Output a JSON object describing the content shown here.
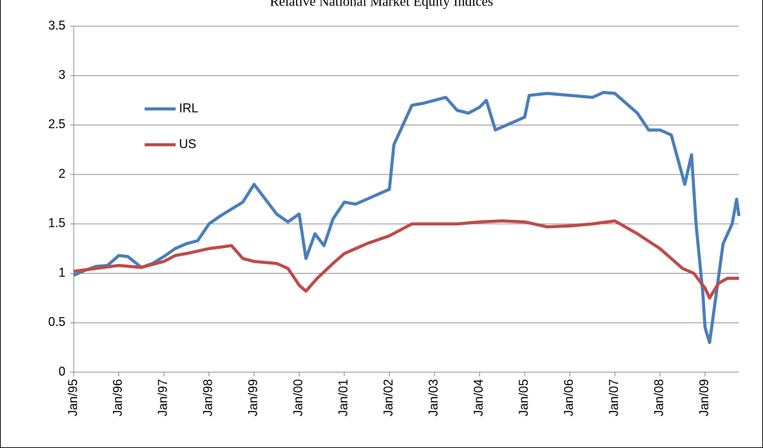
{
  "chart_data": {
    "type": "line",
    "title": "Relative National Market Equity Indices",
    "xlim": [
      1995,
      2009.75
    ],
    "xticks": [
      {
        "value": 1995,
        "label": "Jan/95"
      },
      {
        "value": 1996,
        "label": "Jan/96"
      },
      {
        "value": 1997,
        "label": "Jan/97"
      },
      {
        "value": 1998,
        "label": "Jan/98"
      },
      {
        "value": 1999,
        "label": "Jan/99"
      },
      {
        "value": 2000,
        "label": "Jan/00"
      },
      {
        "value": 2001,
        "label": "Jan/01"
      },
      {
        "value": 2002,
        "label": "Jan/02"
      },
      {
        "value": 2003,
        "label": "Jan/03"
      },
      {
        "value": 2004,
        "label": "Jan/04"
      },
      {
        "value": 2005,
        "label": "Jan/05"
      },
      {
        "value": 2006,
        "label": "Jan/06"
      },
      {
        "value": 2007,
        "label": "Jan/07"
      },
      {
        "value": 2008,
        "label": "Jan/08"
      },
      {
        "value": 2009,
        "label": "Jan/09"
      }
    ],
    "ylim": [
      0,
      3.5
    ],
    "yticks": [
      0,
      0.5,
      1,
      1.5,
      2,
      2.5,
      3,
      3.5
    ],
    "grid": true,
    "legend": "upper-left",
    "series": [
      {
        "name": "IRL",
        "color": "#4a7ebb",
        "x": [
          1995.0,
          1995.25,
          1995.5,
          1995.75,
          1996.0,
          1996.2,
          1996.5,
          1996.75,
          1997.0,
          1997.25,
          1997.5,
          1997.75,
          1998.0,
          1998.25,
          1998.5,
          1998.75,
          1999.0,
          1999.25,
          1999.5,
          1999.75,
          2000.0,
          2000.15,
          2000.35,
          2000.55,
          2000.75,
          2001.0,
          2001.25,
          2001.5,
          2001.75,
          2002.0,
          2002.1,
          2002.25,
          2002.5,
          2002.75,
          2003.0,
          2003.25,
          2003.5,
          2003.75,
          2004.0,
          2004.15,
          2004.35,
          2004.6,
          2004.85,
          2005.0,
          2005.1,
          2005.5,
          2006.0,
          2006.5,
          2006.75,
          2007.0,
          2007.25,
          2007.5,
          2007.75,
          2008.0,
          2008.25,
          2008.4,
          2008.55,
          2008.7,
          2008.8,
          2008.95,
          2009.0,
          2009.1,
          2009.25,
          2009.4,
          2009.6,
          2009.7,
          2009.75
        ],
        "values": [
          0.98,
          1.03,
          1.07,
          1.08,
          1.18,
          1.17,
          1.06,
          1.1,
          1.17,
          1.25,
          1.3,
          1.33,
          1.5,
          1.58,
          1.65,
          1.72,
          1.9,
          1.75,
          1.6,
          1.52,
          1.6,
          1.15,
          1.4,
          1.28,
          1.55,
          1.72,
          1.7,
          1.75,
          1.8,
          1.85,
          2.3,
          2.45,
          2.7,
          2.72,
          2.75,
          2.78,
          2.65,
          2.62,
          2.68,
          2.75,
          2.45,
          2.5,
          2.55,
          2.58,
          2.8,
          2.82,
          2.8,
          2.78,
          2.83,
          2.82,
          2.72,
          2.62,
          2.45,
          2.45,
          2.4,
          2.15,
          1.9,
          2.2,
          1.5,
          0.8,
          0.45,
          0.3,
          0.8,
          1.3,
          1.5,
          1.75,
          1.58
        ]
      },
      {
        "name": "US",
        "color": "#be4b48",
        "x": [
          1995.0,
          1995.5,
          1996.0,
          1996.5,
          1997.0,
          1997.25,
          1997.5,
          1998.0,
          1998.5,
          1998.75,
          1999.0,
          1999.5,
          1999.75,
          2000.0,
          2000.15,
          2000.4,
          2000.75,
          2001.0,
          2001.5,
          2002.0,
          2002.5,
          2003.0,
          2003.5,
          2004.0,
          2004.5,
          2005.0,
          2005.5,
          2006.0,
          2006.5,
          2007.0,
          2007.5,
          2008.0,
          2008.25,
          2008.5,
          2008.75,
          2009.0,
          2009.1,
          2009.3,
          2009.5,
          2009.75
        ],
        "values": [
          1.02,
          1.05,
          1.08,
          1.06,
          1.12,
          1.18,
          1.2,
          1.25,
          1.28,
          1.15,
          1.12,
          1.1,
          1.05,
          0.88,
          0.82,
          0.95,
          1.1,
          1.2,
          1.3,
          1.38,
          1.5,
          1.5,
          1.5,
          1.52,
          1.53,
          1.52,
          1.47,
          1.48,
          1.5,
          1.53,
          1.4,
          1.25,
          1.15,
          1.05,
          1.0,
          0.85,
          0.75,
          0.9,
          0.95,
          0.95
        ]
      }
    ]
  }
}
